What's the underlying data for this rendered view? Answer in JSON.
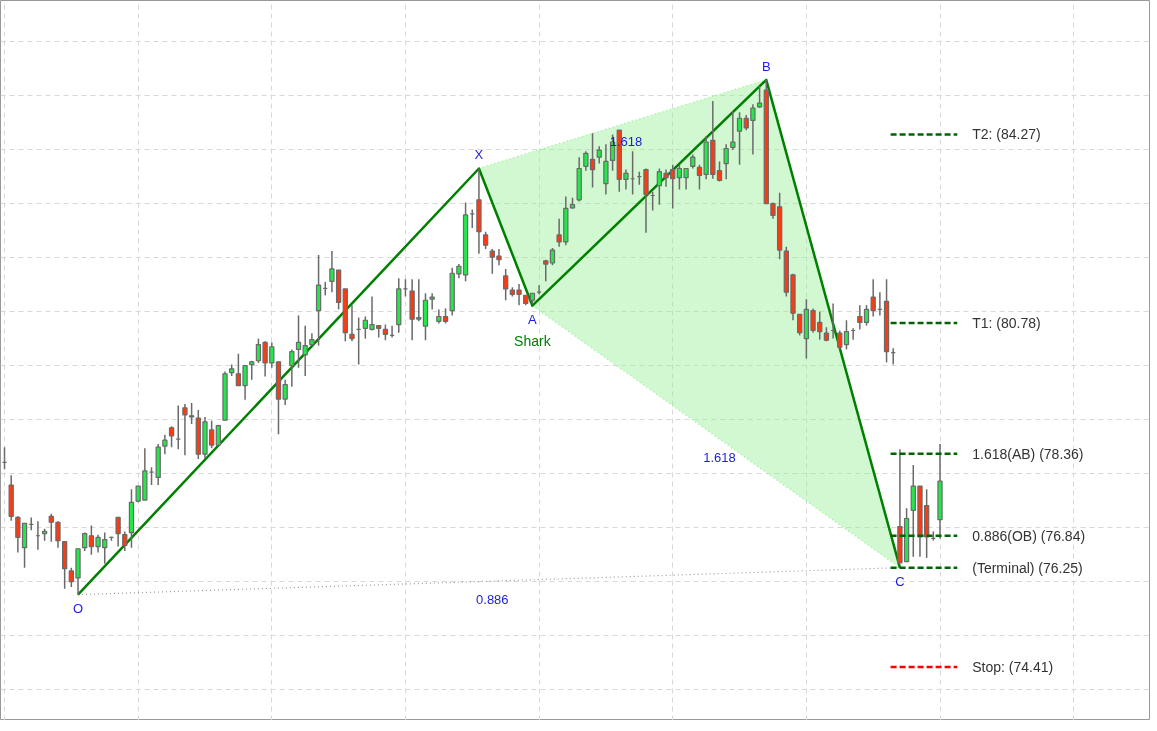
{
  "chart_data": {
    "type": "candlestick",
    "categories": [
      null,
      null,
      null,
      null,
      null,
      null,
      null,
      null,
      null,
      null,
      null,
      null,
      null,
      null,
      null,
      null,
      null,
      null,
      null,
      null,
      null,
      null,
      null,
      null,
      null,
      null,
      null,
      null,
      null,
      null,
      null,
      null,
      null,
      null,
      null,
      null,
      null,
      null,
      null,
      null,
      null,
      null,
      null,
      null,
      null,
      null,
      null,
      null,
      null,
      null,
      null,
      null,
      null,
      null,
      null,
      null,
      null,
      null,
      null,
      null,
      null,
      null,
      null,
      null,
      null,
      null,
      null,
      null,
      null,
      null,
      null,
      null,
      null,
      null,
      null,
      null,
      null,
      null,
      null,
      null,
      null,
      null,
      null,
      null,
      null,
      null,
      null,
      null,
      null,
      null,
      null,
      null,
      null,
      null,
      null,
      null,
      null,
      null,
      null,
      null,
      null,
      null,
      null,
      null,
      null,
      null,
      null,
      null,
      null,
      null,
      null,
      null,
      null,
      null,
      null,
      null,
      null,
      null,
      null,
      null,
      null,
      null,
      null,
      null,
      null,
      null,
      null,
      null,
      null,
      null,
      null,
      null,
      null,
      null,
      null,
      null,
      null,
      null,
      null,
      null,
      null
    ],
    "ohlc": [
      [
        78.2,
        78.48,
        78.07,
        78.2
      ],
      [
        77.78,
        77.96,
        77.12,
        77.2
      ],
      [
        77.18,
        77.2,
        76.53,
        76.81
      ],
      [
        76.62,
        77.07,
        76.25,
        77.07
      ],
      [
        77.05,
        77.18,
        76.94,
        77.05
      ],
      [
        76.84,
        77.11,
        76.58,
        76.84
      ],
      [
        76.88,
        76.97,
        76.75,
        76.92
      ],
      [
        77.2,
        77.25,
        76.73,
        77.09
      ],
      [
        77.09,
        77.11,
        76.62,
        76.75
      ],
      [
        76.73,
        76.73,
        75.86,
        76.23
      ],
      [
        76.19,
        76.25,
        75.89,
        75.99
      ],
      [
        76.06,
        76.6,
        75.75,
        76.6
      ],
      [
        76.62,
        76.9,
        76.56,
        76.88
      ],
      [
        76.84,
        77.03,
        76.49,
        76.64
      ],
      [
        76.64,
        76.86,
        76.53,
        76.81
      ],
      [
        76.62,
        76.9,
        76.32,
        76.77
      ],
      [
        76.81,
        76.82,
        76.75,
        76.81
      ],
      [
        77.18,
        77.18,
        76.64,
        76.88
      ],
      [
        76.86,
        76.92,
        76.56,
        76.66
      ],
      [
        76.9,
        77.7,
        76.62,
        77.46
      ],
      [
        77.48,
        77.76,
        77.46,
        77.76
      ],
      [
        77.5,
        78.46,
        77.5,
        78.04
      ],
      [
        78.02,
        78.11,
        77.78,
        78.02
      ],
      [
        77.92,
        78.54,
        77.78,
        78.48
      ],
      [
        78.5,
        78.71,
        78.35,
        78.61
      ],
      [
        78.84,
        78.87,
        78.48,
        78.69
      ],
      [
        78.63,
        79.25,
        78.44,
        78.63
      ],
      [
        79.21,
        79.28,
        78.33,
        79.08
      ],
      [
        79.06,
        79.3,
        78.91,
        79.04
      ],
      [
        79.02,
        79.17,
        78.26,
        78.35
      ],
      [
        78.35,
        79.04,
        78.26,
        78.95
      ],
      [
        78.8,
        78.97,
        78.46,
        78.52
      ],
      [
        78.52,
        78.89,
        78.5,
        78.88
      ],
      [
        78.98,
        79.88,
        78.98,
        79.84
      ],
      [
        79.86,
        80.01,
        79.8,
        79.93
      ],
      [
        79.84,
        80.21,
        79.62,
        79.62
      ],
      [
        79.62,
        79.99,
        79.36,
        79.99
      ],
      [
        80.01,
        80.08,
        79.73,
        80.06
      ],
      [
        80.08,
        80.49,
        80.04,
        80.38
      ],
      [
        80.42,
        80.44,
        79.79,
        80.04
      ],
      [
        80.04,
        80.42,
        79.95,
        80.34
      ],
      [
        80.06,
        80.06,
        78.72,
        79.37
      ],
      [
        79.37,
        79.73,
        79.26,
        79.64
      ],
      [
        79.99,
        80.29,
        79.6,
        80.25
      ],
      [
        80.29,
        80.92,
        79.95,
        80.42
      ],
      [
        80.19,
        80.73,
        79.8,
        80.36
      ],
      [
        80.38,
        80.59,
        80.36,
        80.47
      ],
      [
        81.01,
        82.04,
        80.36,
        81.48
      ],
      [
        81.42,
        81.54,
        81.29,
        81.42
      ],
      [
        81.55,
        82.11,
        81.35,
        81.78
      ],
      [
        81.76,
        81.76,
        81.03,
        81.16
      ],
      [
        81.41,
        81.41,
        80.44,
        80.6
      ],
      [
        80.57,
        81.11,
        80.44,
        80.49
      ],
      [
        80.66,
        80.88,
        80.01,
        80.66
      ],
      [
        80.68,
        80.9,
        80.49,
        80.83
      ],
      [
        80.66,
        81.27,
        80.64,
        80.75
      ],
      [
        80.73,
        80.73,
        80.51,
        80.68
      ],
      [
        80.66,
        80.75,
        80.46,
        80.57
      ],
      [
        80.55,
        80.73,
        80.51,
        80.55
      ],
      [
        80.75,
        81.61,
        80.6,
        81.41
      ],
      [
        81.41,
        81.59,
        81.27,
        81.41
      ],
      [
        81.37,
        81.59,
        80.46,
        80.85
      ],
      [
        80.85,
        81.59,
        80.81,
        80.88
      ],
      [
        80.72,
        81.33,
        80.46,
        81.2
      ],
      [
        81.22,
        81.33,
        81.03,
        81.26
      ],
      [
        80.81,
        81.03,
        80.77,
        80.9
      ],
      [
        80.9,
        81.05,
        80.77,
        80.81
      ],
      [
        81.01,
        81.8,
        80.92,
        81.7
      ],
      [
        81.69,
        81.87,
        81.61,
        81.83
      ],
      [
        81.67,
        83.01,
        81.55,
        82.78
      ],
      [
        82.8,
        82.88,
        82.54,
        82.8
      ],
      [
        83.06,
        83.64,
        82.06,
        82.47
      ],
      [
        82.41,
        82.47,
        82.15,
        82.22
      ],
      [
        82.11,
        82.15,
        81.69,
        82.0
      ],
      [
        82.02,
        82.15,
        81.85,
        81.95
      ],
      [
        81.65,
        81.78,
        81.2,
        81.41
      ],
      [
        81.39,
        81.44,
        81.27,
        81.31
      ],
      [
        81.39,
        81.5,
        81.11,
        81.31
      ],
      [
        81.29,
        81.29,
        81.11,
        81.14
      ],
      [
        81.2,
        81.33,
        81.13,
        81.33
      ],
      [
        81.35,
        81.48,
        81.31,
        81.35
      ],
      [
        81.93,
        81.95,
        81.55,
        81.87
      ],
      [
        81.89,
        82.17,
        81.85,
        82.13
      ],
      [
        82.41,
        82.71,
        82.19,
        82.28
      ],
      [
        82.28,
        83.12,
        82.22,
        82.9
      ],
      [
        82.91,
        83.1,
        82.9,
        82.97
      ],
      [
        83.06,
        83.85,
        83.03,
        83.64
      ],
      [
        83.68,
        83.96,
        83.6,
        83.92
      ],
      [
        83.81,
        84.29,
        83.29,
        83.62
      ],
      [
        83.85,
        84.05,
        83.73,
        83.98
      ],
      [
        83.36,
        84.09,
        83.16,
        83.77
      ],
      [
        83.79,
        84.27,
        83.6,
        84.13
      ],
      [
        84.35,
        84.35,
        83.21,
        83.44
      ],
      [
        83.44,
        83.62,
        83.25,
        83.55
      ],
      [
        83.45,
        83.96,
        83.16,
        83.45
      ],
      [
        83.49,
        83.58,
        83.34,
        83.49
      ],
      [
        83.62,
        83.64,
        82.45,
        83.16
      ],
      [
        83.14,
        83.21,
        82.86,
        83.14
      ],
      [
        83.32,
        83.64,
        82.97,
        83.58
      ],
      [
        83.55,
        83.62,
        83.3,
        83.47
      ],
      [
        83.62,
        83.71,
        82.9,
        83.45
      ],
      [
        83.47,
        83.71,
        83.25,
        83.64
      ],
      [
        83.47,
        83.64,
        83.25,
        83.64
      ],
      [
        83.68,
        83.9,
        83.64,
        83.85
      ],
      [
        83.66,
        83.71,
        83.25,
        83.51
      ],
      [
        83.53,
        84.24,
        83.44,
        84.13
      ],
      [
        84.16,
        84.89,
        83.45,
        83.53
      ],
      [
        83.6,
        83.77,
        83.4,
        83.42
      ],
      [
        83.73,
        84.09,
        83.44,
        84.01
      ],
      [
        84.03,
        84.7,
        83.98,
        84.13
      ],
      [
        84.33,
        84.68,
        83.71,
        84.57
      ],
      [
        84.57,
        84.63,
        84.35,
        84.39
      ],
      [
        84.53,
        84.83,
        83.9,
        84.76
      ],
      [
        84.78,
        85.17,
        84.76,
        84.85
      ],
      [
        85.09,
        85.28,
        82.99,
        82.99
      ],
      [
        82.99,
        83.01,
        82.71,
        82.77
      ],
      [
        82.93,
        83.19,
        81.96,
        82.13
      ],
      [
        82.11,
        82.19,
        81.27,
        81.35
      ],
      [
        81.67,
        81.69,
        80.83,
        80.96
      ],
      [
        80.94,
        80.94,
        80.55,
        80.6
      ],
      [
        80.49,
        81.22,
        80.12,
        81.03
      ],
      [
        81.01,
        81.05,
        80.6,
        80.64
      ],
      [
        80.79,
        80.99,
        80.47,
        80.62
      ],
      [
        80.59,
        80.7,
        80.44,
        80.46
      ],
      [
        80.64,
        81.14,
        80.49,
        80.64
      ],
      [
        80.59,
        80.64,
        80.29,
        80.33
      ],
      [
        80.38,
        80.83,
        80.29,
        80.62
      ],
      [
        80.64,
        80.68,
        80.47,
        80.64
      ],
      [
        80.9,
        81.11,
        80.66,
        80.79
      ],
      [
        80.79,
        81.11,
        80.73,
        81.03
      ],
      [
        81.26,
        81.59,
        80.9,
        81.01
      ],
      [
        81.03,
        81.35,
        80.92,
        81.03
      ],
      [
        81.18,
        81.59,
        80.05,
        80.25
      ],
      [
        80.23,
        80.31,
        80.01,
        80.23
      ],
      [
        77.01,
        78.44,
        76.34,
        76.34
      ],
      [
        76.36,
        77.35,
        76.36,
        77.16
      ],
      [
        77.31,
        78.15,
        76.45,
        77.76
      ],
      [
        77.76,
        77.76,
        76.45,
        76.82
      ],
      [
        77.4,
        77.7,
        76.43,
        76.82
      ],
      [
        76.79,
        76.92,
        76.75,
        76.79
      ],
      [
        77.14,
        78.54,
        76.79,
        77.85
      ]
    ],
    "ylim": [
      73.42,
      86.75
    ],
    "tick_labels": false,
    "grid": true,
    "series": [
      {
        "type": "line",
        "name": "1.618",
        "color": "#9af09a",
        "line_style": "dotted",
        "values": [
          null,
          null,
          null,
          null,
          null,
          null,
          null,
          null,
          null,
          null,
          null,
          null,
          null,
          null,
          null,
          null,
          null,
          null,
          null,
          null,
          null,
          null,
          null,
          null,
          null,
          null,
          null,
          null,
          null,
          null,
          null,
          null,
          null,
          null,
          null,
          null,
          null,
          null,
          null,
          null,
          null,
          null,
          null,
          null,
          null,
          null,
          null,
          null,
          null,
          null,
          null,
          null,
          null,
          null,
          null,
          null,
          null,
          null,
          null,
          null,
          null,
          null,
          null,
          null,
          null,
          null,
          null,
          null,
          null,
          null,
          null,
          83.64,
          null,
          null,
          null,
          null,
          null,
          null,
          null,
          83.95,
          null,
          null,
          null,
          null,
          null,
          null,
          null,
          null,
          null,
          null,
          null,
          null,
          null,
          84.48,
          null,
          null,
          null,
          null,
          null,
          null,
          null,
          null,
          null,
          null,
          null,
          null,
          null,
          null,
          null,
          null,
          null,
          null,
          null,
          null,
          85.28,
          null,
          null,
          null,
          null,
          null,
          null,
          null,
          null,
          null,
          null,
          null,
          null,
          null,
          null,
          null,
          null,
          null,
          null,
          null,
          null,
          null,
          null,
          null,
          null,
          null,
          null
        ],
        "lower": [
          null,
          null,
          null,
          null,
          null,
          null,
          null,
          null,
          null,
          null,
          null,
          null,
          null,
          null,
          null,
          null,
          null,
          null,
          null,
          null,
          null,
          null,
          null,
          null,
          null,
          null,
          null,
          null,
          null,
          null,
          null,
          null,
          null,
          null,
          null,
          null,
          null,
          null,
          null,
          null,
          null,
          null,
          null,
          null,
          null,
          null,
          null,
          null,
          null,
          null,
          null,
          null,
          null,
          null,
          null,
          null,
          null,
          null,
          null,
          null,
          null,
          null,
          null,
          null,
          null,
          null,
          null,
          null,
          null,
          null,
          null,
          83.64,
          null,
          null,
          null,
          null,
          null,
          null,
          null,
          81.1,
          null,
          null,
          null,
          null,
          null,
          null,
          null,
          null,
          null,
          null,
          null,
          null,
          null,
          82.77,
          null,
          null,
          null,
          null,
          null,
          null,
          null,
          null,
          null,
          null,
          null,
          null,
          null,
          null,
          null,
          null,
          null,
          null,
          null,
          null,
          85.28,
          null,
          null,
          null,
          null,
          null,
          null,
          null,
          null,
          null,
          null,
          null,
          null,
          null,
          null,
          null,
          null,
          null,
          null,
          null,
          null,
          null,
          null,
          null,
          null,
          null,
          null
        ],
        "upper": [
          null,
          null,
          null,
          null,
          null,
          null,
          null,
          null,
          null,
          null,
          null,
          null,
          null,
          null,
          null,
          null,
          null,
          null,
          null,
          null,
          null,
          null,
          null,
          null,
          null,
          null,
          null,
          null,
          null,
          null,
          null,
          null,
          null,
          null,
          null,
          null,
          null,
          null,
          null,
          null,
          null,
          null,
          null,
          null,
          null,
          null,
          null,
          null,
          null,
          null,
          null,
          null,
          null,
          null,
          null,
          null,
          null,
          null,
          null,
          null,
          null,
          null,
          null,
          null,
          null,
          null,
          null,
          null,
          null,
          null,
          null,
          83.64,
          null,
          null,
          null,
          null,
          null,
          null,
          null,
          83.95,
          null,
          null,
          null,
          null,
          null,
          null,
          null,
          null,
          null,
          null,
          null,
          null,
          null,
          84.48,
          null,
          null,
          null,
          null,
          null,
          null,
          null,
          null,
          null,
          null,
          null,
          null,
          null,
          null,
          null,
          null,
          null,
          null,
          null,
          null,
          85.28,
          null,
          null,
          null,
          null,
          null,
          null,
          null,
          null,
          null,
          null,
          null,
          null,
          null,
          null,
          null,
          null,
          null,
          null,
          null,
          null,
          null,
          null,
          null,
          null,
          null,
          null
        ]
      },
      {
        "type": "line",
        "name": "1.618",
        "color": "#9af09a",
        "line_style": "dotted",
        "values": [
          null,
          null,
          null,
          null,
          null,
          null,
          null,
          null,
          null,
          null,
          null,
          null,
          null,
          null,
          null,
          null,
          null,
          null,
          null,
          null,
          null,
          null,
          null,
          null,
          null,
          null,
          null,
          null,
          null,
          null,
          null,
          null,
          null,
          null,
          null,
          null,
          null,
          null,
          null,
          null,
          null,
          null,
          null,
          null,
          null,
          null,
          null,
          null,
          null,
          null,
          null,
          null,
          null,
          null,
          null,
          null,
          null,
          null,
          null,
          null,
          null,
          null,
          null,
          null,
          null,
          null,
          null,
          null,
          null,
          null,
          null,
          null,
          null,
          null,
          null,
          null,
          null,
          null,
          null,
          81.1,
          null,
          null,
          null,
          null,
          null,
          null,
          null,
          null,
          null,
          null,
          null,
          null,
          null,
          null,
          null,
          null,
          null,
          null,
          null,
          null,
          null,
          null,
          null,
          null,
          null,
          null,
          null,
          78.63,
          null,
          null,
          null,
          null,
          null,
          null,
          78.01,
          null,
          null,
          null,
          null,
          null,
          null,
          null,
          null,
          null,
          null,
          null,
          null,
          null,
          null,
          null,
          null,
          null,
          null,
          null,
          76.25,
          null,
          null,
          null,
          null,
          null,
          null
        ],
        "lower": [
          null,
          null,
          null,
          null,
          null,
          null,
          null,
          null,
          null,
          null,
          null,
          null,
          null,
          null,
          null,
          null,
          null,
          null,
          null,
          null,
          null,
          null,
          null,
          null,
          null,
          null,
          null,
          null,
          null,
          null,
          null,
          null,
          null,
          null,
          null,
          null,
          null,
          null,
          null,
          null,
          null,
          null,
          null,
          null,
          null,
          null,
          null,
          null,
          null,
          null,
          null,
          null,
          null,
          null,
          null,
          null,
          null,
          null,
          null,
          null,
          null,
          null,
          null,
          null,
          null,
          null,
          null,
          null,
          null,
          null,
          null,
          null,
          null,
          null,
          null,
          null,
          null,
          null,
          null,
          81.1,
          null,
          null,
          null,
          null,
          null,
          null,
          null,
          null,
          null,
          null,
          null,
          null,
          null,
          null,
          null,
          null,
          null,
          null,
          null,
          null,
          null,
          null,
          null,
          null,
          null,
          null,
          null,
          78.63,
          null,
          null,
          null,
          null,
          null,
          null,
          78.01,
          null,
          null,
          null,
          null,
          null,
          null,
          null,
          null,
          null,
          null,
          null,
          null,
          null,
          null,
          null,
          null,
          null,
          null,
          null,
          76.25,
          null,
          null,
          null,
          null,
          null,
          null
        ],
        "upper": [
          null,
          null,
          null,
          null,
          null,
          null,
          null,
          null,
          null,
          null,
          null,
          null,
          null,
          null,
          null,
          null,
          null,
          null,
          null,
          null,
          null,
          null,
          null,
          null,
          null,
          null,
          null,
          null,
          null,
          null,
          null,
          null,
          null,
          null,
          null,
          null,
          null,
          null,
          null,
          null,
          null,
          null,
          null,
          null,
          null,
          null,
          null,
          null,
          null,
          null,
          null,
          null,
          null,
          null,
          null,
          null,
          null,
          null,
          null,
          null,
          null,
          null,
          null,
          null,
          null,
          null,
          null,
          null,
          null,
          null,
          null,
          null,
          null,
          null,
          null,
          null,
          null,
          null,
          null,
          81.1,
          null,
          null,
          null,
          null,
          null,
          null,
          null,
          null,
          null,
          null,
          null,
          null,
          null,
          null,
          null,
          null,
          null,
          null,
          null,
          null,
          null,
          null,
          null,
          null,
          null,
          null,
          null,
          84.44,
          null,
          null,
          null,
          null,
          null,
          null,
          85.28,
          null,
          null,
          null,
          null,
          null,
          null,
          null,
          null,
          null,
          null,
          null,
          null,
          null,
          null,
          null,
          null,
          null,
          null,
          null,
          76.25,
          null,
          null,
          null,
          null,
          null,
          null
        ]
      },
      {
        "type": "line",
        "name": "0.886",
        "color": "#9a9a9a",
        "line_style": "dotted",
        "values": [
          null,
          null,
          null,
          null,
          null,
          null,
          null,
          null,
          null,
          null,
          null,
          75.75,
          null,
          null,
          null,
          null,
          null,
          null,
          null,
          null,
          null,
          null,
          null,
          null,
          null,
          null,
          null,
          null,
          null,
          null,
          null,
          null,
          null,
          null,
          null,
          null,
          null,
          null,
          null,
          null,
          null,
          null,
          null,
          null,
          null,
          null,
          null,
          null,
          null,
          null,
          null,
          null,
          null,
          null,
          null,
          null,
          null,
          null,
          null,
          null,
          null,
          null,
          null,
          null,
          null,
          null,
          null,
          null,
          null,
          null,
          null,
          null,
          null,
          76.0,
          null,
          null,
          null,
          null,
          null,
          null,
          null,
          null,
          null,
          null,
          null,
          null,
          null,
          null,
          null,
          null,
          null,
          null,
          null,
          null,
          null,
          null,
          null,
          null,
          null,
          null,
          null,
          null,
          null,
          null,
          null,
          null,
          null,
          null,
          null,
          null,
          null,
          null,
          null,
          null,
          null,
          null,
          null,
          null,
          null,
          null,
          null,
          null,
          null,
          null,
          null,
          null,
          null,
          null,
          null,
          null,
          null,
          null,
          null,
          null,
          76.25,
          null,
          null,
          null,
          null,
          null,
          null
        ]
      },
      {
        "type": "line",
        "name": "Shark",
        "color": "#008000",
        "line_style": "solid",
        "values": [
          null,
          null,
          null,
          null,
          null,
          null,
          null,
          null,
          null,
          null,
          null,
          75.75,
          null,
          null,
          null,
          null,
          null,
          null,
          null,
          null,
          null,
          null,
          null,
          null,
          null,
          null,
          null,
          null,
          null,
          null,
          null,
          null,
          null,
          null,
          null,
          null,
          null,
          null,
          null,
          null,
          null,
          null,
          null,
          null,
          null,
          null,
          null,
          null,
          null,
          null,
          null,
          null,
          null,
          null,
          null,
          null,
          null,
          null,
          null,
          null,
          null,
          null,
          null,
          null,
          null,
          null,
          null,
          null,
          null,
          null,
          null,
          83.64,
          null,
          null,
          null,
          null,
          null,
          null,
          null,
          81.1,
          null,
          null,
          null,
          null,
          null,
          null,
          null,
          null,
          null,
          null,
          null,
          null,
          null,
          null,
          null,
          null,
          null,
          null,
          null,
          null,
          null,
          null,
          null,
          null,
          null,
          null,
          null,
          null,
          null,
          null,
          null,
          null,
          null,
          null,
          85.28,
          null,
          null,
          null,
          null,
          null,
          null,
          null,
          null,
          null,
          null,
          null,
          null,
          null,
          null,
          null,
          null,
          null,
          null,
          null,
          76.25,
          null,
          null,
          null,
          null,
          null,
          null
        ],
        "value_labels": [
          null,
          null,
          null,
          null,
          null,
          null,
          null,
          null,
          null,
          null,
          null,
          "O",
          null,
          null,
          null,
          null,
          null,
          null,
          null,
          null,
          null,
          null,
          null,
          null,
          null,
          null,
          null,
          null,
          null,
          null,
          null,
          null,
          null,
          null,
          null,
          null,
          null,
          null,
          null,
          null,
          null,
          null,
          null,
          null,
          null,
          null,
          null,
          null,
          null,
          null,
          null,
          null,
          null,
          null,
          null,
          null,
          null,
          null,
          null,
          null,
          null,
          null,
          null,
          null,
          null,
          null,
          null,
          null,
          null,
          null,
          null,
          "X",
          null,
          null,
          null,
          null,
          null,
          null,
          null,
          "A",
          null,
          null,
          null,
          null,
          null,
          null,
          null,
          null,
          null,
          null,
          null,
          null,
          null,
          null,
          null,
          null,
          null,
          null,
          null,
          null,
          null,
          null,
          null,
          null,
          null,
          null,
          null,
          null,
          null,
          null,
          null,
          null,
          null,
          null,
          "B",
          null,
          null,
          null,
          null,
          null,
          null,
          null,
          null,
          null,
          null,
          null,
          null,
          null,
          null,
          null,
          null,
          null,
          null,
          null,
          "C",
          null,
          null,
          null,
          null,
          null,
          null
        ]
      }
    ],
    "ref_lines": [
      {
        "axis": "y",
        "value": 84.27,
        "label": "T2: (84.27)",
        "color": "#006400",
        "line_style": "dashed"
      },
      {
        "axis": "y",
        "value": 80.78,
        "label": "T1: (80.78)",
        "color": "#006400",
        "line_style": "dashed"
      },
      {
        "axis": "y",
        "value": 78.36,
        "label": "1.618(AB) (78.36)",
        "color": "#006400",
        "line_style": "dashed"
      },
      {
        "axis": "y",
        "value": 76.84,
        "label": "0.886(OB) (76.84)",
        "color": "#006400",
        "line_style": "dashed"
      },
      {
        "axis": "y",
        "value": 76.25,
        "label": "(Terminal) (76.25)",
        "color": "#006400",
        "line_style": "dashed"
      },
      {
        "axis": "y",
        "value": 74.41,
        "label": "Stop: (74.41)",
        "color": "#ff0000",
        "line_style": "dashed"
      }
    ]
  }
}
